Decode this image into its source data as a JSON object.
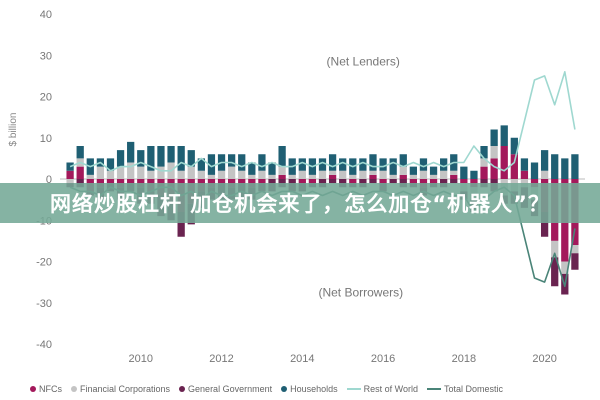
{
  "banner": {
    "text": "网络炒股杠杆 加仓机会来了，怎么加仓“机器人”？"
  },
  "chart_data": {
    "type": "bar",
    "title": "",
    "xlabel": "",
    "ylabel": "$ billion",
    "ylim": [
      -40,
      40
    ],
    "xlim": [
      2008,
      2021
    ],
    "y_ticks": [
      -40,
      -30,
      -20,
      -10,
      0,
      10,
      20,
      30,
      40
    ],
    "x_ticks": [
      2010,
      2012,
      2014,
      2016,
      2018,
      2020
    ],
    "grid": false,
    "legend_position": "bottom",
    "annotations": [
      "(Net Lenders)",
      "(Net Borrowers)"
    ],
    "x": [
      2008.25,
      2008.5,
      2008.75,
      2009.0,
      2009.25,
      2009.5,
      2009.75,
      2010.0,
      2010.25,
      2010.5,
      2010.75,
      2011.0,
      2011.25,
      2011.5,
      2011.75,
      2012.0,
      2012.25,
      2012.5,
      2012.75,
      2013.0,
      2013.25,
      2013.5,
      2013.75,
      2014.0,
      2014.25,
      2014.5,
      2014.75,
      2015.0,
      2015.25,
      2015.5,
      2015.75,
      2016.0,
      2016.25,
      2016.5,
      2016.75,
      2017.0,
      2017.25,
      2017.5,
      2017.75,
      2018.0,
      2018.25,
      2018.5,
      2018.75,
      2019.0,
      2019.25,
      2019.5,
      2019.75,
      2020.0,
      2020.25,
      2020.5,
      2020.75
    ],
    "series": [
      {
        "name": "NFCs",
        "color": "#a3195b",
        "values": [
          2,
          3,
          -3,
          -2,
          -1,
          -2,
          -1,
          -2,
          -3,
          -4,
          -6,
          -8,
          -6,
          -3,
          -2,
          -1,
          -2,
          -1,
          -2,
          -1,
          0,
          1,
          0,
          -1,
          -1,
          0,
          1,
          0,
          -1,
          0,
          1,
          -1,
          0,
          1,
          -1,
          -2,
          -1,
          0,
          1,
          -1,
          -2,
          3,
          5,
          8,
          6,
          2,
          -2,
          -8,
          -15,
          -20,
          -16
        ]
      },
      {
        "name": "Financial Corporations",
        "color": "#c4c4c4",
        "values": [
          -1,
          2,
          1,
          3,
          2,
          3,
          4,
          3,
          2,
          3,
          4,
          2,
          3,
          2,
          1,
          2,
          3,
          2,
          1,
          2,
          1,
          2,
          1,
          2,
          1,
          2,
          1,
          2,
          1,
          2,
          1,
          2,
          1,
          2,
          1,
          2,
          1,
          2,
          1,
          -2,
          -3,
          2,
          3,
          -4,
          -3,
          -2,
          -3,
          2,
          -4,
          -3,
          -2
        ]
      },
      {
        "name": "General Government",
        "color": "#6a2350",
        "values": [
          -1,
          -2,
          -1,
          -3,
          -2,
          -3,
          -2,
          -4,
          -3,
          -5,
          -4,
          -6,
          -5,
          -4,
          -3,
          -4,
          -3,
          -4,
          -3,
          -2,
          -3,
          -2,
          -3,
          -2,
          -1,
          -2,
          -1,
          -2,
          -1,
          -2,
          -1,
          -2,
          -1,
          -2,
          -1,
          -2,
          -1,
          -2,
          -1,
          -2,
          -3,
          -2,
          -3,
          -2,
          -3,
          -5,
          -4,
          -6,
          -7,
          -5,
          -4
        ]
      },
      {
        "name": "Households",
        "color": "#1f5f73",
        "values": [
          2,
          3,
          4,
          2,
          3,
          4,
          5,
          4,
          6,
          5,
          4,
          6,
          4,
          3,
          5,
          4,
          3,
          4,
          3,
          4,
          3,
          5,
          4,
          3,
          4,
          3,
          4,
          3,
          4,
          3,
          4,
          3,
          4,
          3,
          2,
          3,
          2,
          3,
          4,
          3,
          2,
          3,
          4,
          5,
          4,
          3,
          4,
          5,
          6,
          5,
          6
        ]
      }
    ],
    "lines": [
      {
        "name": "Rest of World",
        "color": "#9fd8d0",
        "values": [
          3,
          4,
          3,
          4,
          2,
          3,
          3,
          4,
          3,
          2,
          2,
          4,
          3,
          5,
          3,
          4,
          4,
          3,
          4,
          3,
          4,
          3,
          3,
          4,
          3,
          4,
          3,
          4,
          3,
          4,
          3,
          3,
          4,
          3,
          4,
          3,
          4,
          3,
          4,
          4,
          8,
          5,
          3,
          2,
          4,
          14,
          24,
          25,
          18,
          26,
          12
        ]
      },
      {
        "name": "Total Domestic",
        "color": "#4a8478",
        "values": [
          -2,
          -3,
          -3,
          -4,
          -2,
          -3,
          -3,
          -4,
          -3,
          -2,
          -2,
          -4,
          -3,
          -5,
          -3,
          -4,
          -4,
          -3,
          -4,
          -3,
          -4,
          -3,
          -3,
          -4,
          -3,
          -4,
          -3,
          -4,
          -3,
          -4,
          -3,
          -3,
          -4,
          -3,
          -4,
          -3,
          -4,
          -3,
          -4,
          -4,
          -8,
          -5,
          -3,
          -2,
          -4,
          -14,
          -24,
          -25,
          -18,
          -26,
          -12
        ]
      }
    ]
  }
}
